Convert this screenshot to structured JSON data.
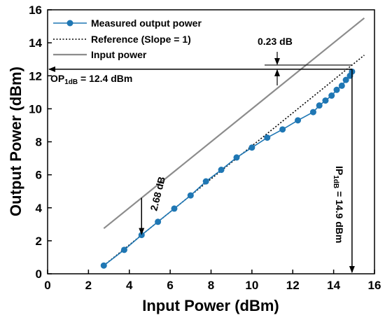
{
  "chart_data": {
    "type": "line",
    "xlabel": "Input Power (dBm)",
    "ylabel": "Output Power (dBm)",
    "xlim": [
      0,
      16
    ],
    "ylim": [
      0,
      16
    ],
    "xticks": [
      0,
      2,
      4,
      6,
      8,
      10,
      12,
      14,
      16
    ],
    "yticks": [
      0,
      2,
      4,
      6,
      8,
      10,
      12,
      14,
      16
    ],
    "grid": false,
    "legend_position": "top-left",
    "series": [
      {
        "name": "Measured output power",
        "color": "#1f77b4",
        "style": "line-with-markers",
        "x": [
          2.75,
          3.75,
          4.6,
          5.4,
          6.2,
          7.0,
          7.75,
          8.5,
          9.25,
          10.0,
          10.75,
          11.5,
          12.25,
          13.0,
          13.3,
          13.6,
          13.9,
          14.15,
          14.4,
          14.6,
          14.8,
          14.9
        ],
        "y": [
          0.5,
          1.45,
          2.35,
          3.15,
          3.95,
          4.75,
          5.6,
          6.3,
          7.05,
          7.65,
          8.25,
          8.75,
          9.3,
          9.8,
          10.2,
          10.5,
          10.8,
          11.15,
          11.4,
          11.75,
          12.0,
          12.25
        ]
      },
      {
        "name": "Reference (Slope = 1)",
        "color": "#000000",
        "style": "dotted",
        "x": [
          2.75,
          15.5
        ],
        "y": [
          0.5,
          13.25
        ]
      },
      {
        "name": "Input power",
        "color": "#8c8c8c",
        "style": "solid",
        "x": [
          2.75,
          15.5
        ],
        "y": [
          2.75,
          15.5
        ]
      }
    ],
    "annotations": {
      "compression_label": "0.23 dB",
      "gap_label": "2.68 dB",
      "op_label_main": "OP",
      "op_label_sub": "1dB",
      "op_label_rest": " = 12.4 dBm",
      "ip_label_main": "IP",
      "ip_label_sub": "1dB",
      "ip_label_rest": " = 14.9 dBm",
      "op1db": 12.4,
      "ip1db": 14.9,
      "gap_x": 4.6
    }
  }
}
